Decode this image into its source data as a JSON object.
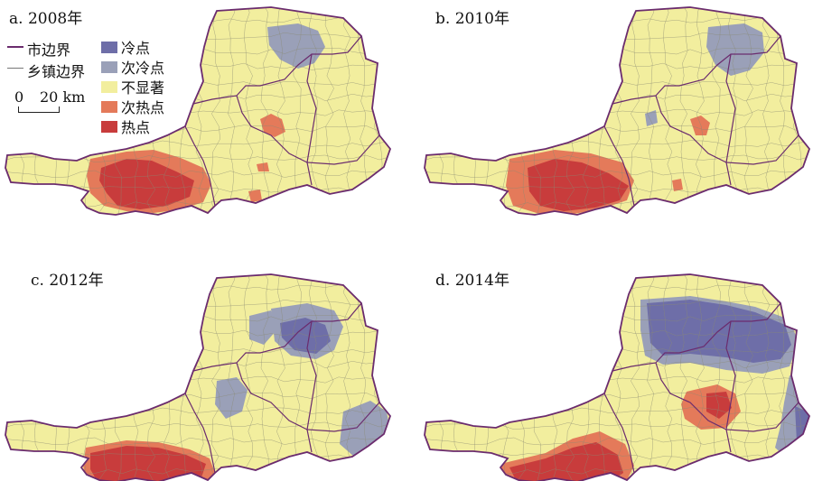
{
  "colors": {
    "cold": "#6e6ea8",
    "subcold": "#9aa0b8",
    "nonsig": "#f2ee9e",
    "subhot": "#e47a5a",
    "hot": "#c83c3c",
    "city_border": "#6b2c6e",
    "town_border": "#8a8a74"
  },
  "legend": {
    "city_boundary": "市边界",
    "town_boundary": "乡镇边界",
    "scale_zero": "0",
    "scale_label": "20 km",
    "classes": [
      {
        "key": "cold",
        "label": "冷点",
        "icon": "cold-swatch"
      },
      {
        "key": "subcold",
        "label": "次冷点",
        "icon": "subcold-swatch"
      },
      {
        "key": "nonsig",
        "label": "不显著",
        "icon": "nonsig-swatch"
      },
      {
        "key": "subhot",
        "label": "次热点",
        "icon": "subhot-swatch"
      },
      {
        "key": "hot",
        "label": "热点",
        "icon": "hot-swatch"
      }
    ]
  },
  "panels": [
    {
      "label": "a. 2008年",
      "pattern": "p2008"
    },
    {
      "label": "b. 2010年",
      "pattern": "p2010"
    },
    {
      "label": "c. 2012年",
      "pattern": "p2012"
    },
    {
      "label": "d. 2014年",
      "pattern": "p2014"
    }
  ]
}
